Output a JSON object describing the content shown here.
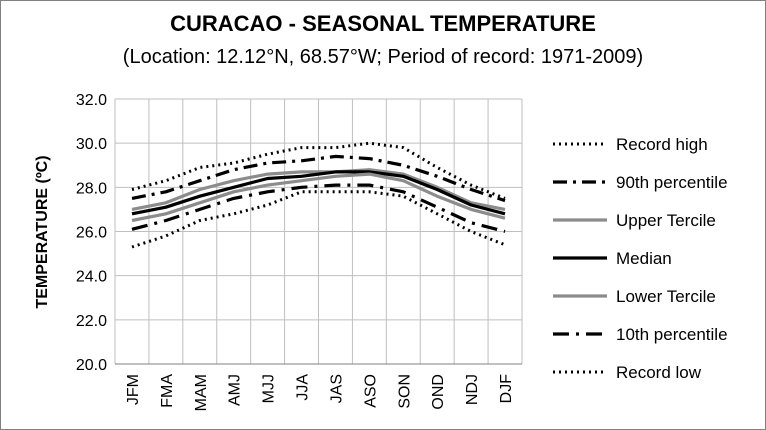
{
  "chart_data": {
    "type": "line",
    "title": "CURACAO - SEASONAL TEMPERATURE",
    "subtitle": "(Location: 12.12°N, 68.57°W; Period of record: 1971-2009)",
    "ylabel": "TEMPERATURE (ºC)",
    "xlabel": "",
    "ylim": [
      20.0,
      32.0
    ],
    "yticks": [
      "20.0",
      "22.0",
      "24.0",
      "26.0",
      "28.0",
      "30.0",
      "32.0"
    ],
    "grid": "horizontal",
    "legend_position": "right",
    "categories": [
      "JFM",
      "FMA",
      "MAM",
      "AMJ",
      "MJJ",
      "JJA",
      "JAS",
      "ASO",
      "SON",
      "OND",
      "NDJ",
      "DJF"
    ],
    "series": [
      {
        "name": "Record high",
        "color": "#000000",
        "style": "dotted",
        "values": [
          27.9,
          28.3,
          28.9,
          29.1,
          29.5,
          29.8,
          29.8,
          30.0,
          29.8,
          28.9,
          28.1,
          27.5
        ]
      },
      {
        "name": "90th percentile",
        "color": "#000000",
        "style": "dashdot",
        "values": [
          27.5,
          27.8,
          28.3,
          28.8,
          29.1,
          29.2,
          29.4,
          29.3,
          29.0,
          28.5,
          27.9,
          27.4
        ]
      },
      {
        "name": "Upper Tercile",
        "color": "#8c8c8c",
        "style": "solid",
        "values": [
          27.0,
          27.3,
          27.9,
          28.3,
          28.6,
          28.7,
          28.7,
          28.8,
          28.6,
          28.0,
          27.3,
          27.0
        ]
      },
      {
        "name": "Median",
        "color": "#000000",
        "style": "solid",
        "values": [
          26.8,
          27.1,
          27.6,
          28.0,
          28.4,
          28.5,
          28.7,
          28.7,
          28.5,
          27.9,
          27.2,
          26.8
        ]
      },
      {
        "name": "Lower Tercile",
        "color": "#8c8c8c",
        "style": "solid",
        "values": [
          26.5,
          26.8,
          27.3,
          27.8,
          28.1,
          28.3,
          28.5,
          28.6,
          28.3,
          27.6,
          27.0,
          26.6
        ]
      },
      {
        "name": "10th percentile",
        "color": "#000000",
        "style": "longdash",
        "values": [
          26.1,
          26.5,
          27.0,
          27.5,
          27.8,
          28.0,
          28.1,
          28.1,
          27.8,
          27.1,
          26.4,
          26.0
        ]
      },
      {
        "name": "Record low",
        "color": "#000000",
        "style": "dotted",
        "values": [
          25.3,
          25.8,
          26.5,
          26.8,
          27.2,
          27.8,
          27.8,
          27.8,
          27.6,
          26.8,
          26.0,
          25.4
        ]
      }
    ]
  }
}
